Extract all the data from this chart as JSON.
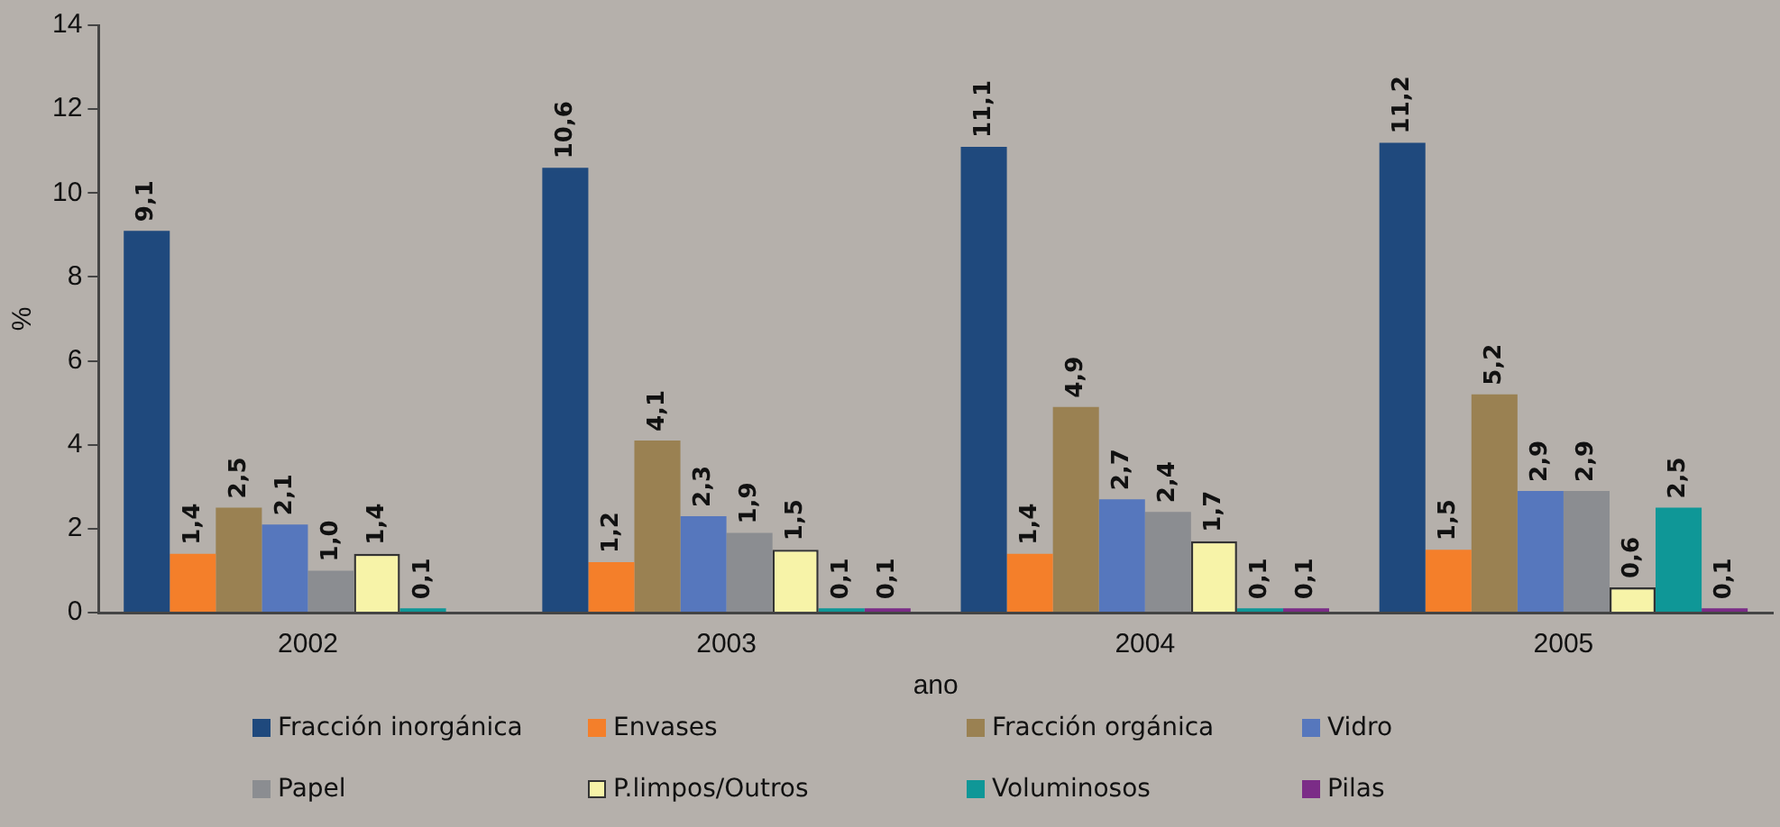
{
  "chart_data": {
    "type": "bar",
    "xlabel": "ano",
    "ylabel": "%",
    "categories": [
      "2002",
      "2003",
      "2004",
      "2005"
    ],
    "ylim": [
      0,
      14
    ],
    "yticks": [
      0,
      2,
      4,
      6,
      8,
      10,
      12,
      14
    ],
    "grid": false,
    "legend": "bottom",
    "series": [
      {
        "name": "Fracción inorgánica",
        "color": "#1f497d",
        "values": [
          9.1,
          10.6,
          11.1,
          11.2
        ],
        "value_labels": [
          "9,1",
          "10,6",
          "11,1",
          "11,2"
        ]
      },
      {
        "name": "Envases",
        "color": "#f47f2a",
        "values": [
          1.4,
          1.2,
          1.4,
          1.5
        ],
        "value_labels": [
          "1,4",
          "1,2",
          "1,4",
          "1,5"
        ]
      },
      {
        "name": "Fracción orgánica",
        "color": "#9a8152",
        "values": [
          2.5,
          4.1,
          4.9,
          5.2
        ],
        "value_labels": [
          "2,5",
          "4,1",
          "4,9",
          "5,2"
        ]
      },
      {
        "name": "Vidro",
        "color": "#5677bd",
        "values": [
          2.1,
          2.3,
          2.7,
          2.9
        ],
        "value_labels": [
          "2,1",
          "2,3",
          "2,7",
          "2,9"
        ]
      },
      {
        "name": "Papel",
        "color": "#8b8d91",
        "values": [
          1.0,
          1.9,
          2.4,
          2.9
        ],
        "value_labels": [
          "1,0",
          "1,9",
          "2,4",
          "2,9"
        ]
      },
      {
        "name": "P.limpos/Outros",
        "color": "#f7f3a8",
        "values": [
          1.4,
          1.5,
          1.7,
          0.6
        ],
        "value_labels": [
          "1,4",
          "1,5",
          "1,7",
          "0,6"
        ]
      },
      {
        "name": "Voluminosos",
        "color": "#0f9797",
        "values": [
          0.1,
          0.1,
          0.1,
          2.5
        ],
        "value_labels": [
          "0,1",
          "0,1",
          "0,1",
          "2,5"
        ]
      },
      {
        "name": "Pilas",
        "color": "#7b2c87",
        "values": [
          null,
          0.1,
          0.1,
          0.1
        ],
        "value_labels": [
          null,
          "0,1",
          "0,1",
          "0,1"
        ]
      }
    ]
  }
}
